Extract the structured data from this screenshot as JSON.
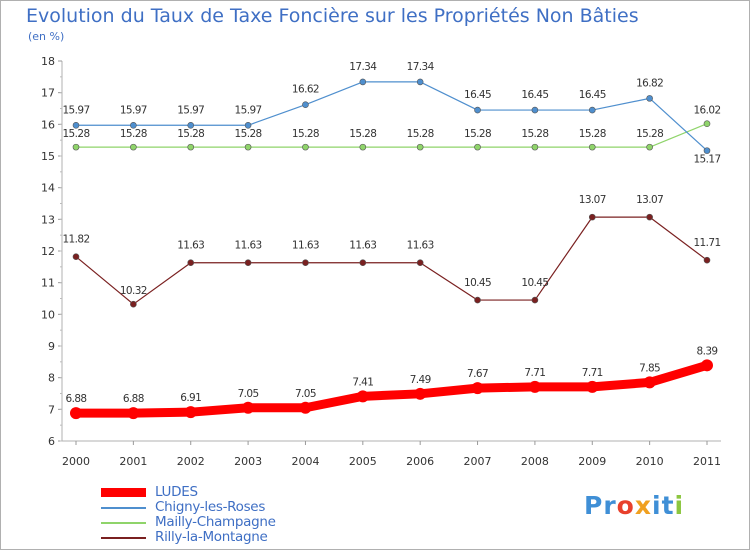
{
  "title": "Evolution du Taux de Taxe Foncière sur les Propriétés Non Bâties",
  "unit": "(en %)",
  "logo": {
    "text": "Proxiti",
    "letters": [
      "P",
      "r",
      "o",
      "x",
      "i",
      "t",
      "i"
    ],
    "colors": [
      "#3f8fd6",
      "#3f8fd6",
      "#e8402c",
      "#f0a020",
      "#3f8fd6",
      "#3f8fd6",
      "#8cc63f"
    ]
  },
  "chart_data": {
    "type": "line",
    "x": [
      "2000",
      "2001",
      "2002",
      "2003",
      "2004",
      "2005",
      "2006",
      "2007",
      "2008",
      "2009",
      "2010",
      "2011"
    ],
    "ylim": [
      6,
      18
    ],
    "yticks": [
      "6",
      "7",
      "8",
      "9",
      "10",
      "11",
      "12",
      "13",
      "14",
      "15",
      "16",
      "17",
      "18"
    ],
    "grid": false,
    "legend_position": "bottom-left",
    "series": [
      {
        "name": "LUDES",
        "color": "#ff0000",
        "values": [
          6.88,
          6.88,
          6.91,
          7.05,
          7.05,
          7.41,
          7.49,
          7.67,
          7.71,
          7.71,
          7.85,
          8.39
        ],
        "labels": [
          "6.88",
          "6.88",
          "6.91",
          "7.05",
          "7.05",
          "7.41",
          "7.49",
          "7.67",
          "7.71",
          "7.71",
          "7.85",
          "8.39"
        ]
      },
      {
        "name": "Chigny-les-Roses",
        "color": "#4f8fce",
        "values": [
          15.97,
          15.97,
          15.97,
          15.97,
          16.62,
          17.34,
          17.34,
          16.45,
          16.45,
          16.45,
          16.82,
          15.17
        ],
        "labels": [
          "15.97",
          "15.97",
          "15.97",
          "15.97",
          "16.62",
          "17.34",
          "17.34",
          "16.45",
          "16.45",
          "16.45",
          "16.82",
          "15.17"
        ]
      },
      {
        "name": "Mailly-Champagne",
        "color": "#8fd46a",
        "values": [
          15.28,
          15.28,
          15.28,
          15.28,
          15.28,
          15.28,
          15.28,
          15.28,
          15.28,
          15.28,
          15.28,
          16.02
        ],
        "labels": [
          "15.28",
          "15.28",
          "15.28",
          "15.28",
          "15.28",
          "15.28",
          "15.28",
          "15.28",
          "15.28",
          "15.28",
          "15.28",
          "16.02"
        ]
      },
      {
        "name": "Rilly-la-Montagne",
        "color": "#7a2020",
        "values": [
          11.82,
          10.32,
          11.63,
          11.63,
          11.63,
          11.63,
          11.63,
          10.45,
          10.45,
          13.07,
          13.07,
          11.71
        ],
        "labels": [
          "11.82",
          "10.32",
          "11.63",
          "11.63",
          "11.63",
          "11.63",
          "11.63",
          "10.45",
          "10.45",
          "13.07",
          "13.07",
          "11.71"
        ]
      }
    ]
  }
}
